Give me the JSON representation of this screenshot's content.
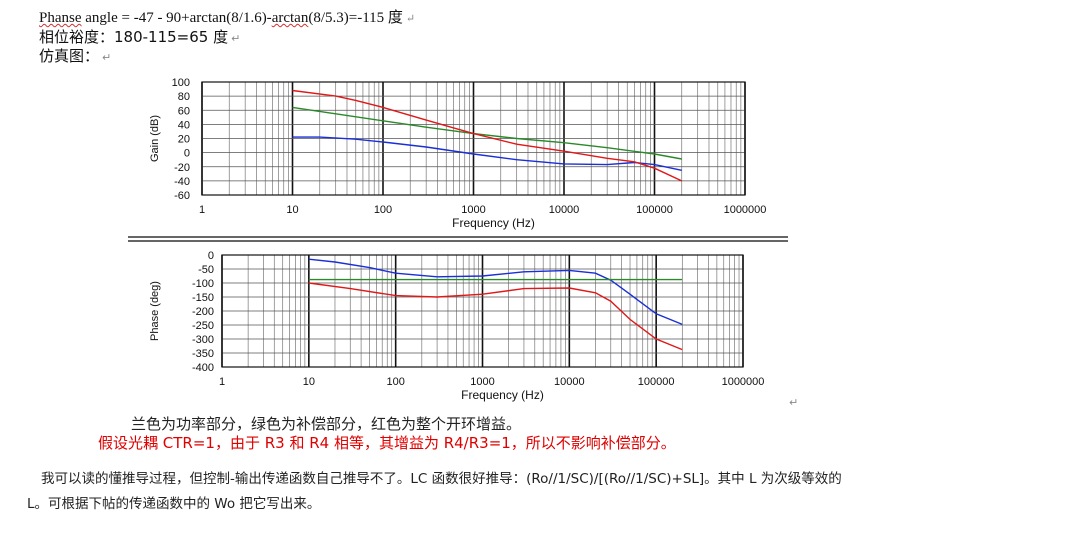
{
  "header": {
    "line1_prefix": "Phanse",
    "line1_rest": " angle = -47 - 90+arctan(8/1.6)-",
    "line1_arctan": "arctan",
    "line1_end": "(8/5.3)=-115 度",
    "line2": "相位裕度：180-115=65 度",
    "line3": "仿真图：",
    "return_mark": "↵"
  },
  "chart_data": [
    {
      "type": "line",
      "title": "",
      "xlabel": "Frequency (Hz)",
      "ylabel": "Gain (dB)",
      "x_scale": "log",
      "xlim": [
        1,
        1000000
      ],
      "ylim": [
        -60,
        100
      ],
      "x_ticks": [
        "1",
        "10",
        "100",
        "1000",
        "10000",
        "100000",
        "1000000"
      ],
      "y_ticks": [
        "100",
        "80",
        "60",
        "40",
        "20",
        "0",
        "-20",
        "-40",
        "-60"
      ],
      "grid": true,
      "series": [
        {
          "color": "#1a2fd6",
          "x": [
            10,
            20,
            50,
            100,
            300,
            1000,
            3000,
            10000,
            30000,
            60000,
            100000,
            200000
          ],
          "y": [
            22,
            22,
            19,
            15,
            8,
            -2,
            -10,
            -16,
            -17,
            -14,
            -17,
            -25
          ]
        },
        {
          "color": "#2a8a2a",
          "x": [
            10,
            30,
            100,
            300,
            1000,
            3000,
            10000,
            30000,
            100000,
            200000
          ],
          "y": [
            64,
            55,
            45,
            36,
            27,
            20,
            14,
            7,
            -2,
            -9
          ]
        },
        {
          "color": "#e01818",
          "x": [
            10,
            30,
            50,
            100,
            300,
            1000,
            3000,
            10000,
            30000,
            60000,
            100000,
            200000
          ],
          "y": [
            88,
            80,
            74,
            64,
            46,
            27,
            12,
            2,
            -8,
            -13,
            -22,
            -40
          ]
        }
      ]
    },
    {
      "type": "line",
      "title": "",
      "xlabel": "Frequency (Hz)",
      "ylabel": "Phase (deg)",
      "x_scale": "log",
      "xlim": [
        1,
        1000000
      ],
      "ylim": [
        -400,
        0
      ],
      "x_ticks": [
        "1",
        "10",
        "100",
        "1000",
        "10000",
        "100000",
        "1000000"
      ],
      "y_ticks": [
        "0",
        "-50",
        "-100",
        "-150",
        "-200",
        "-250",
        "-300",
        "-350",
        "-400"
      ],
      "grid": true,
      "series": [
        {
          "color": "#1a2fd6",
          "x": [
            10,
            20,
            50,
            100,
            300,
            1000,
            3000,
            10000,
            20000,
            30000,
            50000,
            100000,
            200000
          ],
          "y": [
            -15,
            -25,
            -45,
            -65,
            -78,
            -75,
            -60,
            -55,
            -65,
            -90,
            -140,
            -210,
            -248
          ]
        },
        {
          "color": "#2a8a2a",
          "x": [
            10,
            100,
            1000,
            10000,
            100000,
            200000
          ],
          "y": [
            -88,
            -88,
            -88,
            -88,
            -88,
            -88
          ]
        },
        {
          "color": "#e01818",
          "x": [
            10,
            30,
            100,
            300,
            1000,
            3000,
            10000,
            20000,
            30000,
            50000,
            100000,
            200000
          ],
          "y": [
            -100,
            -120,
            -145,
            -150,
            -140,
            -120,
            -118,
            -135,
            -165,
            -230,
            -300,
            -338
          ]
        }
      ]
    }
  ],
  "legend": {
    "line1": "兰色为功率部分，绿色为补偿部分，红色为整个开环增益。",
    "line2": "假设光耦 CTR=1，由于 R3 和 R4 相等，其增益为 R4/R3=1，所以不影响补偿部分。"
  },
  "paragraph": {
    "line1": "我可以读的懂推导过程，但控制-输出传递函数自己推导不了。LC 函数很好推导：(Ro//1/SC)/[(Ro//1/SC)+SL]。其中 L 为次级等效的",
    "line2": "L。可根据下帖的传递函数中的 Wo 把它写出来。"
  }
}
